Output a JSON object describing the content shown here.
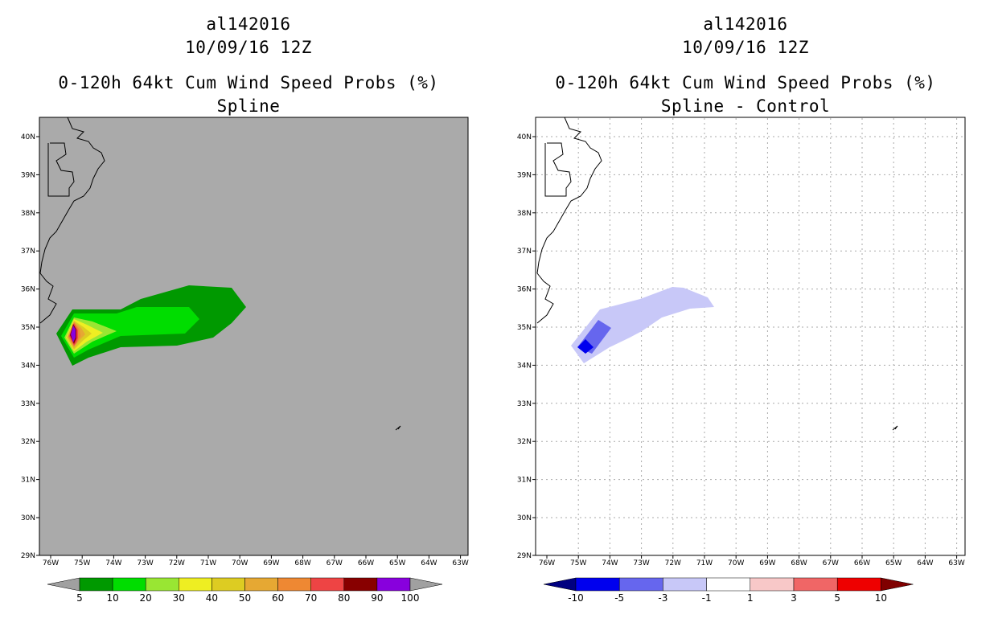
{
  "left": {
    "storm_id": "al142016",
    "date": "10/09/16 12Z",
    "product": "0-120h 64kt Cum Wind Speed Probs (%)",
    "subtitle": "Spline",
    "background": "#aaaaaa",
    "legend": {
      "colors": [
        "#a0a0a0",
        "#009900",
        "#00dd00",
        "#99e633",
        "#eeee22",
        "#ddcc22",
        "#e6a833",
        "#ee8833",
        "#ee4444",
        "#880000",
        "#8800dd",
        "#a0a0a0"
      ],
      "labels": [
        "5",
        "10",
        "20",
        "30",
        "40",
        "50",
        "60",
        "70",
        "80",
        "90",
        "100"
      ]
    }
  },
  "right": {
    "storm_id": "al142016",
    "date": "10/09/16 12Z",
    "product": "0-120h 64kt Cum Wind Speed Probs (%)",
    "subtitle": "Spline - Control",
    "background": "#ffffff",
    "legend": {
      "colors": [
        "#000080",
        "#0000ee",
        "#6666ee",
        "#c8c8f8",
        "#ffffff",
        "#f8c8c8",
        "#f06666",
        "#ee0000",
        "#800000"
      ],
      "labels": [
        "-10",
        "-5",
        "-3",
        "-1",
        "1",
        "3",
        "5",
        "10"
      ]
    }
  },
  "axes": {
    "lat_labels": [
      "40N",
      "39N",
      "38N",
      "37N",
      "36N",
      "35N",
      "34N",
      "33N",
      "32N",
      "31N",
      "30N",
      "29N"
    ],
    "lon_labels": [
      "76W",
      "75W",
      "74W",
      "73W",
      "72W",
      "71W",
      "70W",
      "69W",
      "68W",
      "67W",
      "66W",
      "65W",
      "64W",
      "63W"
    ]
  }
}
